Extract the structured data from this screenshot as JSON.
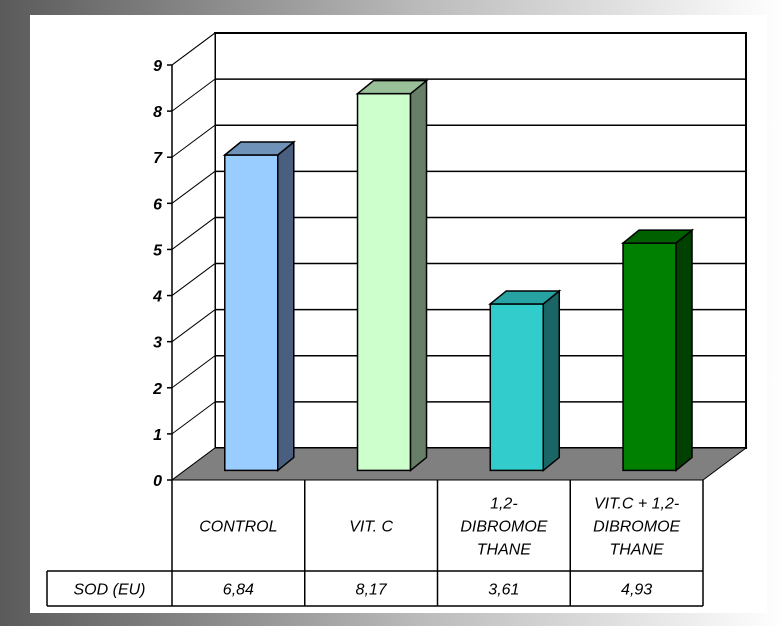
{
  "chart_data": {
    "type": "bar",
    "categories": [
      [
        "CONTROL"
      ],
      [
        "VIT. C"
      ],
      [
        "1,2-",
        "DIBROMOE",
        "THANE"
      ],
      [
        "VIT.C + 1,2-",
        "DIBROMOE",
        "THANE"
      ]
    ],
    "series": [
      {
        "name": "SOD (EU)",
        "values": [
          6.84,
          8.17,
          3.61,
          4.93
        ]
      }
    ],
    "value_labels": [
      "6,84",
      "8,17",
      "3,61",
      "4,93"
    ],
    "ylim": [
      0,
      9
    ],
    "yticks": [
      0,
      1,
      2,
      3,
      4,
      5,
      6,
      7,
      8,
      9
    ],
    "title": "",
    "xlabel": "",
    "ylabel": "",
    "grid": true,
    "bar_colors": [
      {
        "front": "#99ccff",
        "side": "#4a5f80",
        "top": "#6f93b8"
      },
      {
        "front": "#ccffcc",
        "side": "#667f66",
        "top": "#99c099"
      },
      {
        "front": "#33cccc",
        "side": "#1a6666",
        "top": "#28a3a3"
      },
      {
        "front": "#008000",
        "side": "#004000",
        "top": "#006000"
      }
    ],
    "floor_color": "#808080",
    "data_table": true
  }
}
